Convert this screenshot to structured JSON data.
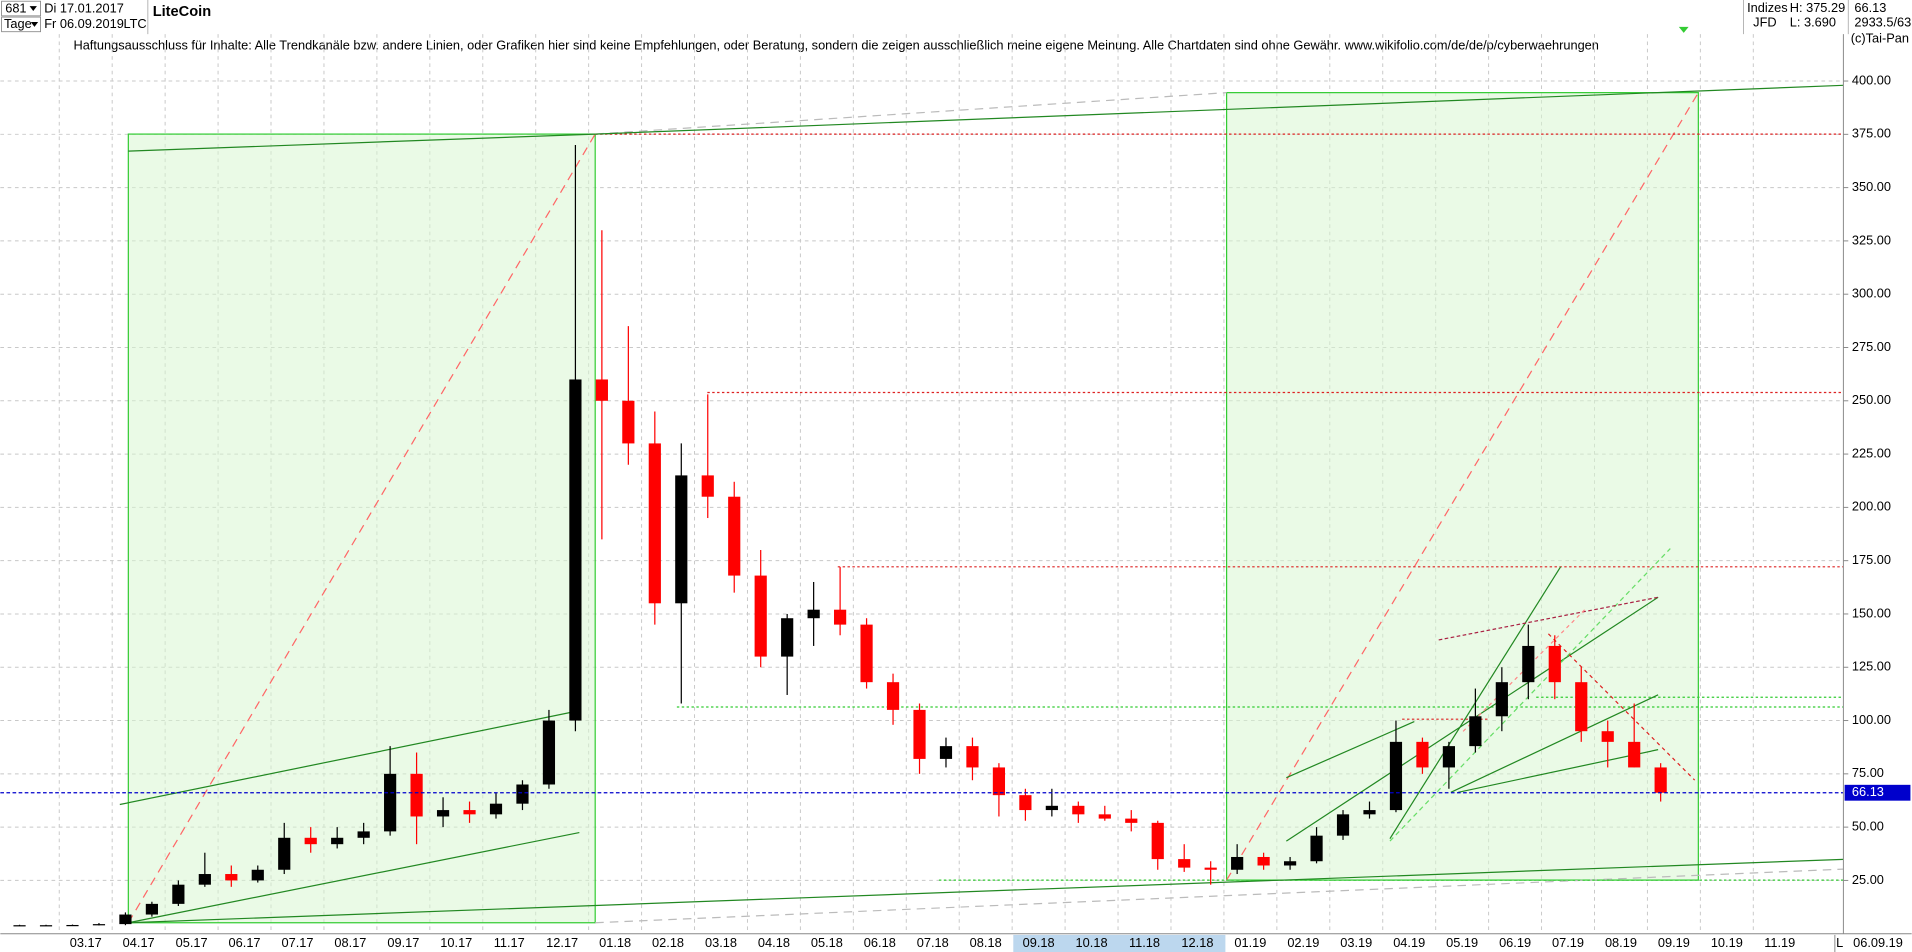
{
  "header": {
    "count": "681",
    "start": "Di 17.01.2017",
    "period": "Tage",
    "end": "Fr 06.09.2019",
    "symbol": "LTC",
    "group": "Indizes",
    "exchange": "JFD",
    "high": "H: 375.29",
    "low": "L: 3.690",
    "last": "66.13",
    "stats": "2933.5/63",
    "copyright": "(c)Tai-Pan"
  },
  "footer": {
    "mode": "L",
    "date": "06.09.19"
  },
  "chart_data": {
    "type": "candlestick",
    "title": "LiteCoin",
    "annotation": "Haftungsausschluss für Inhalte: Alle Trendkanäle bzw. andere Linien, oder Grafiken hier sind keine Empfehlungen, oder Beratung, sondern die zeigen ausschließlich meine eigene Meinung. Alle Chartdaten sind ohne Gewähr.  www.wikifolio.com/de/de/p/cyberwaehrungen",
    "categories": [
      null,
      null,
      "03.17",
      null,
      "04.17",
      null,
      "05.17",
      null,
      "06.17",
      null,
      "07.17",
      null,
      "08.17",
      null,
      "09.17",
      null,
      "10.17",
      null,
      "11.17",
      null,
      "12.17",
      null,
      "01.18",
      null,
      "02.18",
      null,
      "03.18",
      null,
      "04.18",
      null,
      "05.18",
      null,
      "06.18",
      null,
      "07.18",
      null,
      "08.18",
      null,
      "09.18",
      null,
      "10.18",
      null,
      "11.18",
      null,
      "12.18",
      null,
      "01.19",
      null,
      "02.19",
      null,
      "03.19",
      null,
      "04.19",
      null,
      "05.19",
      null,
      "06.19",
      null,
      "07.19",
      null,
      "08.19",
      null,
      "09.19",
      null,
      "10.19",
      null,
      "11.19",
      null
    ],
    "open": [
      4,
      4,
      4,
      4.1,
      4.5,
      9,
      14,
      23,
      28,
      25,
      30,
      45,
      42,
      45,
      48,
      75,
      55,
      58,
      56,
      61,
      70,
      100,
      260,
      250,
      230,
      155,
      215,
      205,
      168,
      130,
      148,
      152,
      145,
      118,
      105,
      82,
      88,
      78,
      65,
      58,
      60,
      56,
      54,
      52,
      35,
      31,
      30,
      36,
      32,
      34,
      46,
      56,
      58,
      90,
      78,
      88,
      102,
      118,
      135,
      118,
      95,
      90,
      78,
      null,
      null,
      null,
      null,
      null
    ],
    "high": [
      4.2,
      4.2,
      4.3,
      5,
      10,
      15,
      25,
      38,
      32,
      32,
      52,
      50,
      50,
      52,
      88,
      85,
      64,
      62,
      66,
      72,
      105,
      370,
      330,
      285,
      245,
      230,
      253,
      212,
      180,
      150,
      165,
      172,
      148,
      122,
      108,
      92,
      92,
      80,
      68,
      68,
      62,
      60,
      58,
      53,
      42,
      34,
      42,
      38,
      36,
      50,
      58,
      62,
      100,
      92,
      90,
      115,
      125,
      145,
      140,
      125,
      100,
      108,
      80,
      null,
      null,
      null,
      null,
      null
    ],
    "low": [
      3.7,
      3.8,
      3.8,
      3.9,
      4,
      8,
      13,
      22,
      22,
      24,
      28,
      38,
      40,
      42,
      46,
      42,
      50,
      52,
      54,
      58,
      68,
      95,
      185,
      220,
      145,
      108,
      195,
      160,
      125,
      112,
      135,
      140,
      115,
      98,
      75,
      78,
      72,
      55,
      53,
      55,
      52,
      53,
      48,
      30,
      29,
      23,
      28,
      30,
      30,
      33,
      44,
      54,
      57,
      75,
      68,
      85,
      95,
      110,
      110,
      90,
      78,
      78,
      62,
      null,
      null,
      null,
      null,
      null
    ],
    "close": [
      4,
      4,
      4.1,
      4.5,
      9,
      14,
      23,
      28,
      25,
      30,
      45,
      42,
      45,
      48,
      75,
      55,
      58,
      56,
      61,
      70,
      100,
      260,
      250,
      230,
      155,
      215,
      205,
      168,
      130,
      148,
      152,
      145,
      118,
      105,
      82,
      88,
      78,
      65,
      58,
      60,
      56,
      54,
      52,
      35,
      31,
      30,
      36,
      32,
      34,
      46,
      56,
      58,
      90,
      78,
      88,
      102,
      118,
      135,
      118,
      95,
      90,
      78,
      66.13,
      null,
      null,
      null,
      null,
      null
    ],
    "up_color": "#000000",
    "down_color": "#ff0000",
    "ylim": [
      0,
      422
    ],
    "yticks": [
      {
        "value": 25,
        "label": "25.00"
      },
      {
        "value": 50,
        "label": "50.00"
      },
      {
        "value": 75,
        "label": "75.00"
      },
      {
        "value": 100,
        "label": "100.00"
      },
      {
        "value": 125,
        "label": "125.00"
      },
      {
        "value": 150,
        "label": "150.00"
      },
      {
        "value": 175,
        "label": "175.00"
      },
      {
        "value": 200,
        "label": "200.00"
      },
      {
        "value": 225,
        "label": "225.00"
      },
      {
        "value": 250,
        "label": "250.00"
      },
      {
        "value": 275,
        "label": "275.00"
      },
      {
        "value": 300,
        "label": "300.00"
      },
      {
        "value": 325,
        "label": "325.00"
      },
      {
        "value": 350,
        "label": "350.00"
      },
      {
        "value": 375,
        "label": "375.00"
      },
      {
        "value": 400,
        "label": "400.00"
      }
    ],
    "grid": true,
    "last_value": 66.13,
    "last_color": "#0000cc"
  }
}
